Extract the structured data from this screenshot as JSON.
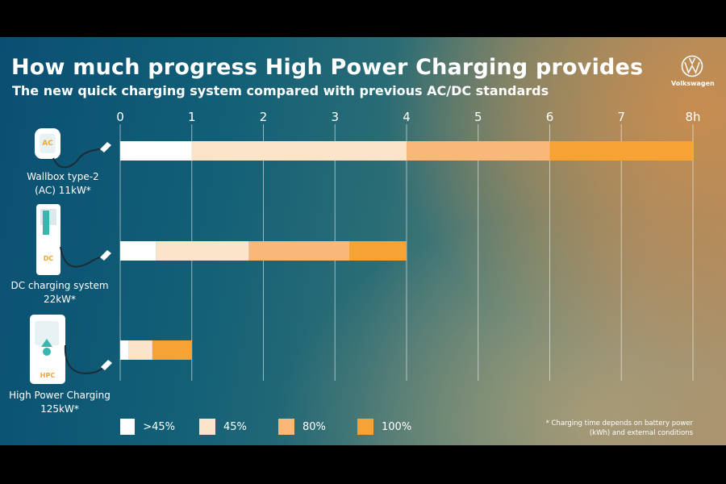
{
  "title": "How much progress High Power Charging provides",
  "subtitle": "The new quick charging system compared with previous AC/DC standards",
  "brand": {
    "name": "Volkswagen"
  },
  "chart_data": {
    "type": "bar",
    "orientation": "horizontal",
    "stacked": true,
    "unit": "h",
    "x_ticks": [
      "0",
      "1",
      "2",
      "3",
      "4",
      "5",
      "6",
      "7",
      "8h"
    ],
    "xlim": [
      0,
      8
    ],
    "categories": [
      "Wallbox type-2 (AC) 11kW*",
      "DC charging system 22kW*",
      "High Power Charging 125kW*"
    ],
    "series": [
      {
        "name": ">45%",
        "color": "#ffffff",
        "values": [
          1.0,
          0.5,
          0.12
        ]
      },
      {
        "name": "45%",
        "color": "#fbe4c8",
        "values": [
          3.0,
          1.3,
          0.33
        ]
      },
      {
        "name": "80%",
        "color": "#f8b878",
        "values": [
          2.0,
          1.4,
          0.0
        ]
      },
      {
        "name": "100%",
        "color": "#f7a234",
        "values": [
          2.0,
          0.8,
          0.55
        ]
      }
    ],
    "grid": true,
    "legend_position": "bottom"
  },
  "stations": [
    {
      "name": "Wallbox type-2",
      "spec": "(AC) 11kW*",
      "badge": "AC"
    },
    {
      "name": "DC charging system",
      "spec": "22kW*",
      "badge": "DC"
    },
    {
      "name": "High Power Charging",
      "spec": "125kW*",
      "badge": "HPC"
    }
  ],
  "footnote": {
    "line1": "* Charging time depends on battery power",
    "line2": "(kWh) and external conditions"
  },
  "colors": {
    "accent": "#f7a234"
  }
}
